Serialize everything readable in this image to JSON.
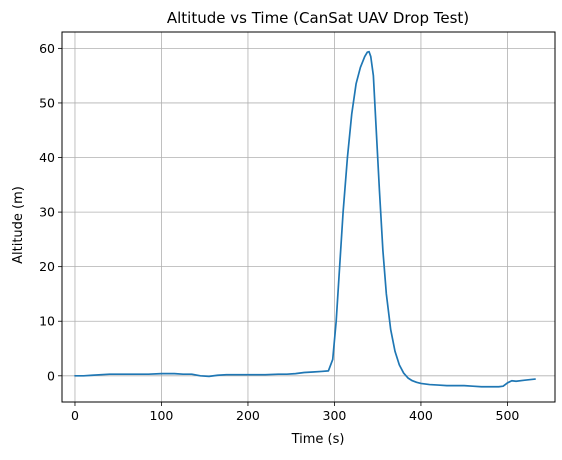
{
  "chart_data": {
    "type": "line",
    "title": "Altitude vs Time (CanSat UAV Drop Test)",
    "xlabel": "Time (s)",
    "ylabel": "Altitude (m)",
    "xlim": [
      -15,
      555
    ],
    "ylim": [
      -4.8,
      63
    ],
    "xticks": [
      0,
      100,
      200,
      300,
      400,
      500
    ],
    "yticks": [
      0,
      10,
      20,
      30,
      40,
      50,
      60
    ],
    "grid": true,
    "legend": "none",
    "line_color": "#1f77b4",
    "series": [
      {
        "x": [
          0,
          10,
          20,
          30,
          40,
          55,
          70,
          85,
          100,
          115,
          125,
          135,
          145,
          155,
          165,
          175,
          190,
          205,
          220,
          235,
          245,
          255,
          265,
          275,
          285,
          293,
          298,
          302,
          306,
          310,
          315,
          320,
          325,
          330,
          335,
          338,
          340,
          342,
          345,
          348,
          352,
          356,
          360,
          365,
          370,
          375,
          380,
          385,
          390,
          395,
          400,
          410,
          420,
          430,
          440,
          450,
          460,
          470,
          480,
          490,
          495,
          500,
          505,
          510,
          520,
          532
        ],
        "y": [
          0.0,
          0.0,
          0.1,
          0.2,
          0.3,
          0.3,
          0.3,
          0.3,
          0.4,
          0.4,
          0.3,
          0.3,
          0.0,
          -0.1,
          0.1,
          0.2,
          0.2,
          0.2,
          0.2,
          0.3,
          0.3,
          0.4,
          0.6,
          0.7,
          0.8,
          0.9,
          3.0,
          10.0,
          20.0,
          30.0,
          40.0,
          48.0,
          53.5,
          56.5,
          58.5,
          59.3,
          59.4,
          58.5,
          55.0,
          46.0,
          34.0,
          23.0,
          15.0,
          8.5,
          4.5,
          2.0,
          0.5,
          -0.4,
          -0.9,
          -1.2,
          -1.4,
          -1.6,
          -1.7,
          -1.8,
          -1.8,
          -1.8,
          -1.9,
          -2.0,
          -2.0,
          -2.0,
          -1.9,
          -1.3,
          -0.9,
          -1.0,
          -0.8,
          -0.6
        ]
      }
    ]
  }
}
